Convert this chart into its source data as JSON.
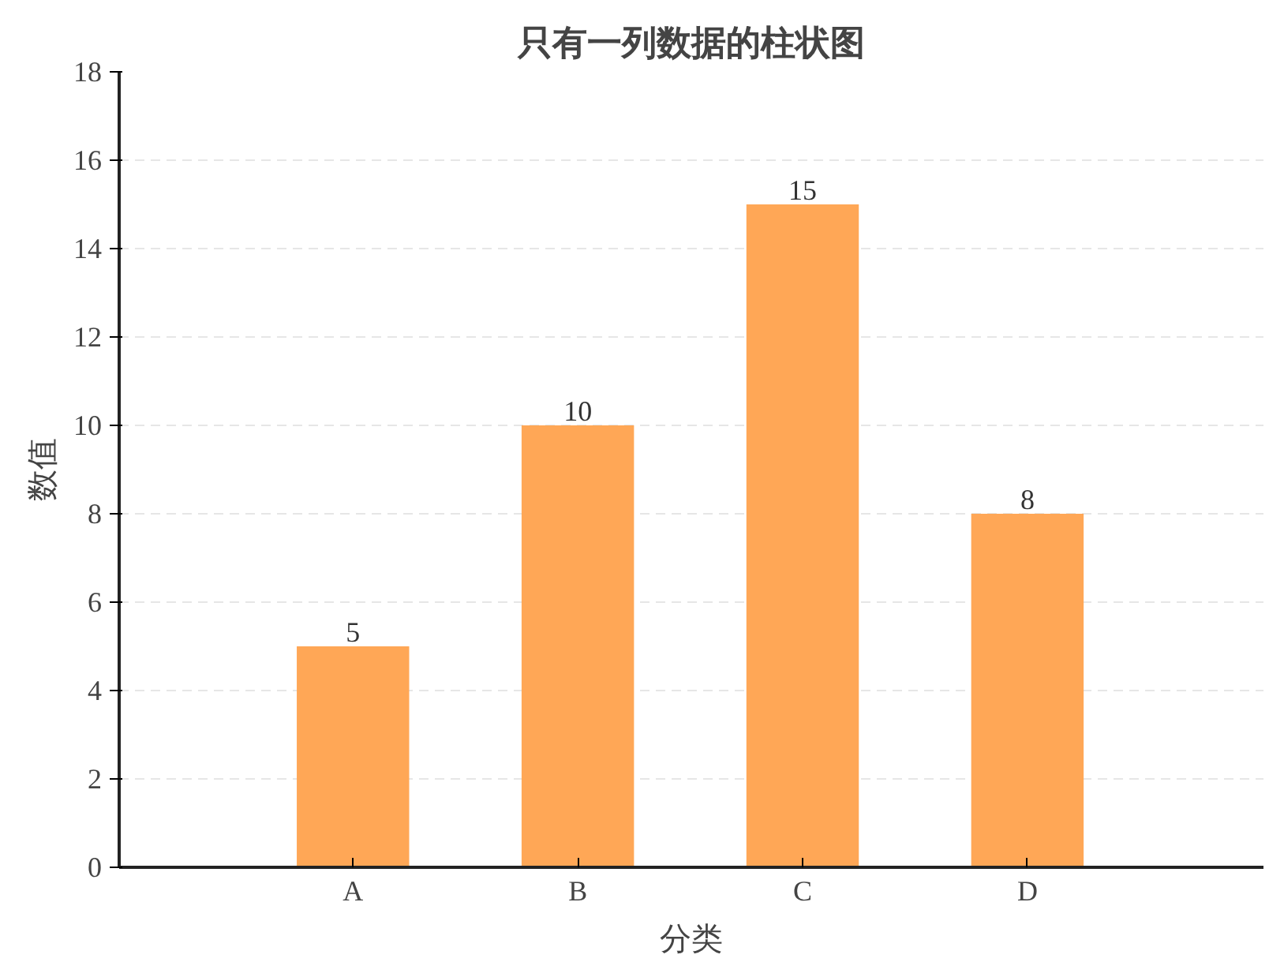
{
  "chart_data": {
    "type": "bar",
    "title": "只有一列数据的柱状图",
    "xlabel": "分类",
    "ylabel": "数值",
    "categories": [
      "A",
      "B",
      "C",
      "D"
    ],
    "values": [
      5,
      10,
      15,
      8
    ],
    "color": "#ffa756",
    "ylim": [
      0,
      18
    ],
    "yticks": [
      0,
      2,
      4,
      6,
      8,
      10,
      12,
      14,
      16,
      18
    ],
    "grid": "y",
    "data_labels": true
  }
}
